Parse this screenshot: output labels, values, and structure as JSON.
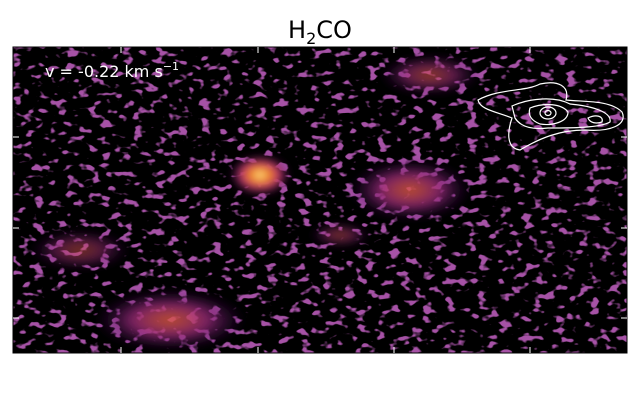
{
  "figure": {
    "title": {
      "main": "H",
      "sub": "2",
      "rest": "CO"
    },
    "annotation": {
      "main": "v = -0.22 km s",
      "sup": "−1"
    }
  }
}
